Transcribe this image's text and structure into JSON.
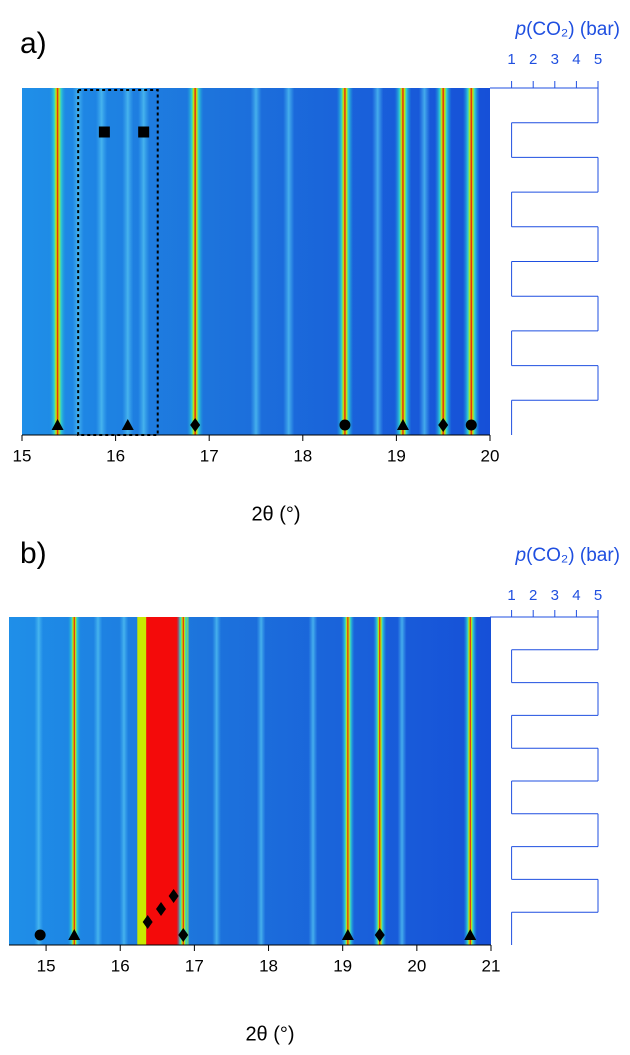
{
  "chart_data": [
    {
      "type": "heatmap",
      "panel_label": "a)",
      "xlabel": "2θ (°)",
      "xlim": [
        15,
        20
      ],
      "xticks": [
        15,
        16,
        17,
        18,
        19,
        20
      ],
      "pressure_symbol": "p",
      "pressure_label": "(CO₂) (bar)",
      "plim": [
        0,
        5
      ],
      "pticks": [
        1,
        2,
        3,
        4,
        5
      ],
      "pressure_steps": [
        5,
        1,
        5,
        1,
        5,
        1,
        5,
        1,
        5,
        1
      ],
      "strong_peaks": [
        15.38,
        16.85,
        18.45,
        19.07,
        19.5,
        19.8
      ],
      "weak_peaks": [
        15.6,
        15.85,
        16.13,
        16.3,
        17.5,
        17.85,
        18.8,
        19.3
      ],
      "highlight": [
        15.85,
        16.4
      ],
      "markers": [
        {
          "x": 15.38,
          "shape": "triangle",
          "level": 0
        },
        {
          "x": 16.13,
          "shape": "triangle",
          "level": 0
        },
        {
          "x": 16.85,
          "shape": "diamond",
          "level": 0
        },
        {
          "x": 18.45,
          "shape": "circle",
          "level": 0
        },
        {
          "x": 19.07,
          "shape": "triangle",
          "level": 0
        },
        {
          "x": 19.5,
          "shape": "diamond",
          "level": 0
        },
        {
          "x": 19.8,
          "shape": "circle",
          "level": 0
        },
        {
          "x": 15.88,
          "shape": "square",
          "level": 9
        },
        {
          "x": 16.3,
          "shape": "square",
          "level": 9
        }
      ]
    },
    {
      "type": "heatmap",
      "panel_label": "b)",
      "xlabel": "2θ (°)",
      "xlim": [
        14.5,
        21
      ],
      "xticks": [
        15,
        16,
        17,
        18,
        19,
        20,
        21
      ],
      "pressure_symbol": "p",
      "pressure_label": "(CO₂) (bar)",
      "plim": [
        0,
        5
      ],
      "pticks": [
        1,
        2,
        3,
        4,
        5
      ],
      "pressure_steps": [
        5,
        1,
        5,
        1,
        5,
        1,
        5,
        1,
        5,
        1
      ],
      "strong_peaks": [
        15.38,
        16.85,
        19.07,
        19.5,
        20.72
      ],
      "weak_peaks": [
        14.9,
        15.7,
        16.05,
        17.3,
        17.9,
        18.6,
        19.8
      ],
      "band": [
        16.35,
        16.8
      ],
      "markers": [
        {
          "x": 14.92,
          "shape": "circle",
          "level": 0
        },
        {
          "x": 15.38,
          "shape": "triangle",
          "level": 0
        },
        {
          "x": 16.37,
          "shape": "diamond",
          "level": 1
        },
        {
          "x": 16.55,
          "shape": "diamond",
          "level": 2
        },
        {
          "x": 16.72,
          "shape": "diamond",
          "level": 3
        },
        {
          "x": 16.85,
          "shape": "diamond",
          "level": 0
        },
        {
          "x": 19.07,
          "shape": "triangle",
          "level": 0
        },
        {
          "x": 19.5,
          "shape": "diamond",
          "level": 0
        },
        {
          "x": 20.72,
          "shape": "triangle",
          "level": 0
        }
      ]
    }
  ]
}
